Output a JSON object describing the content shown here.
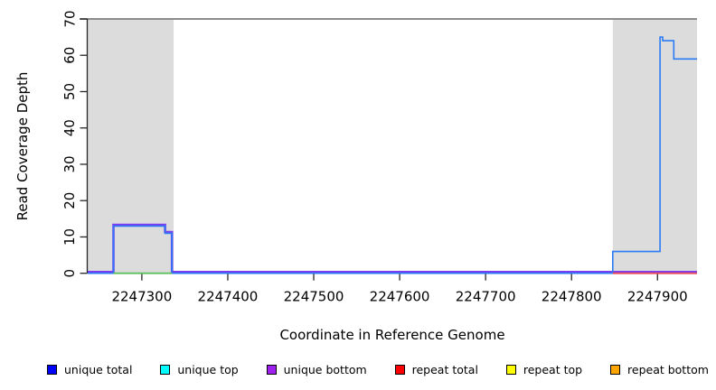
{
  "chart_data": {
    "type": "line",
    "title": "",
    "xlabel": "Coordinate in Reference Genome",
    "ylabel": "Read Coverage Depth",
    "xlim": [
      2247237,
      2247946
    ],
    "ylim": [
      0,
      70
    ],
    "x_ticks": [
      2247300,
      2247400,
      2247500,
      2247600,
      2247700,
      2247800,
      2247900
    ],
    "y_ticks": [
      0,
      10,
      20,
      30,
      40,
      50,
      60,
      70
    ],
    "grid": false,
    "legend_position": "bottom",
    "shaded_regions": [
      {
        "name": "repeat-region-left",
        "x0": 2247237,
        "x1": 2247337,
        "color": "#dcdcdc"
      },
      {
        "name": "repeat-region-right",
        "x0": 2247848,
        "x1": 2247946,
        "color": "#dcdcdc"
      }
    ],
    "max_line": {
      "y": 70,
      "color": "#8c8c8c"
    },
    "series": [
      {
        "name": "unique bottom",
        "color": "#7b3cf0",
        "width": 2.6,
        "steps": [
          [
            2247237,
            0
          ],
          [
            2247267,
            13
          ],
          [
            2247327,
            11
          ],
          [
            2247335,
            0
          ]
        ]
      },
      {
        "name": "unique total",
        "color": "#2b7bf5",
        "width": 1.6,
        "steps": [
          [
            2247237,
            0
          ],
          [
            2247267,
            13
          ],
          [
            2247327,
            11
          ],
          [
            2247335,
            0
          ],
          [
            2247848,
            6
          ],
          [
            2247903,
            65
          ],
          [
            2247906,
            64
          ],
          [
            2247919,
            59
          ]
        ]
      }
    ],
    "baseline_overlays": [
      {
        "name": "green-zero-segment",
        "x0": 2247267,
        "x1": 2247335,
        "y": 0,
        "color": "#5fbf5f",
        "width": 1.8
      },
      {
        "name": "repeat-total-zero-segment",
        "x0": 2247848,
        "x1": 2247946,
        "y": 0,
        "color": "#e8485a",
        "width": 1.8
      }
    ]
  },
  "legend": {
    "items": [
      {
        "label": "unique total",
        "color": "#0000ff"
      },
      {
        "label": "unique top",
        "color": "#00ffff"
      },
      {
        "label": "unique bottom",
        "color": "#a020f0"
      },
      {
        "label": "repeat total",
        "color": "#ff0000"
      },
      {
        "label": "repeat top",
        "color": "#ffff00"
      },
      {
        "label": "repeat bottom",
        "color": "#ffa500"
      }
    ]
  },
  "axis": {
    "color": "#262626",
    "tick_len": 8
  }
}
